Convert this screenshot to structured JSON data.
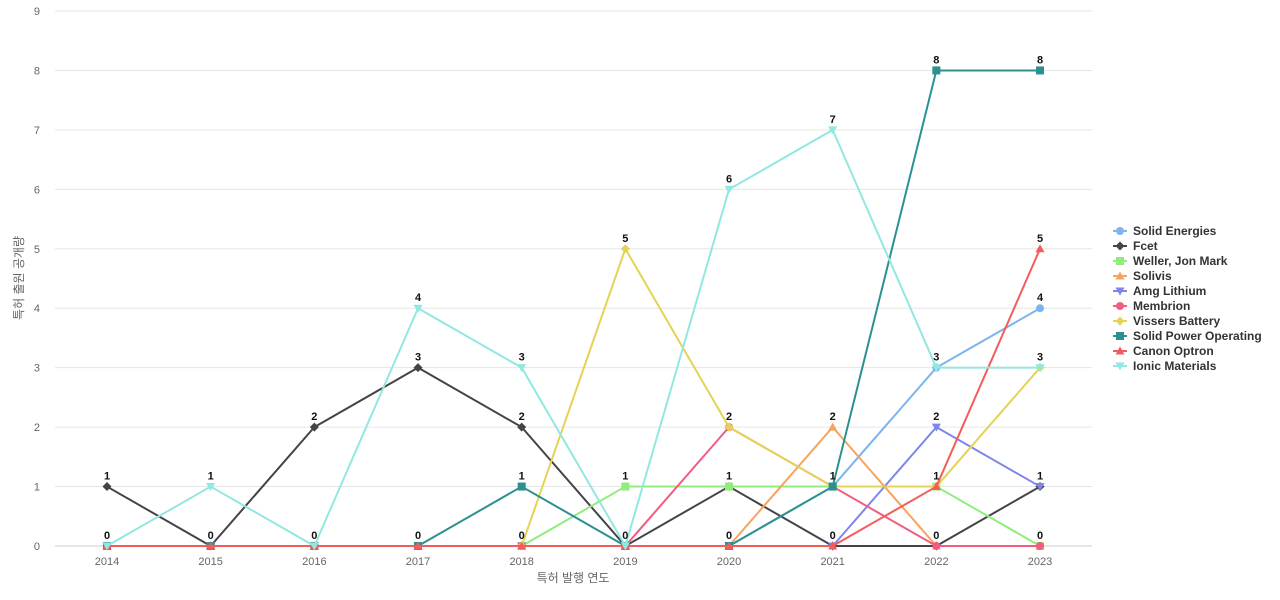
{
  "chart_data": {
    "type": "line",
    "title": "",
    "xlabel": "특허 발행 연도",
    "ylabel": "특허 출원 공개량",
    "ylim": [
      0,
      9
    ],
    "yticks": [
      0,
      1,
      2,
      3,
      4,
      5,
      6,
      7,
      8,
      9
    ],
    "grid": true,
    "legend_position": "right",
    "categories": [
      "2014",
      "2015",
      "2016",
      "2017",
      "2018",
      "2019",
      "2020",
      "2021",
      "2022",
      "2023"
    ],
    "series": [
      {
        "name": "Solid Energies",
        "color": "#7cb5ec",
        "marker": "circle",
        "values": [
          0,
          0,
          0,
          0,
          0,
          0,
          0,
          1,
          3,
          4
        ]
      },
      {
        "name": "Fcet",
        "color": "#434348",
        "marker": "diamond",
        "values": [
          1,
          0,
          2,
          3,
          2,
          0,
          1,
          0,
          0,
          1
        ]
      },
      {
        "name": "Weller, Jon Mark",
        "color": "#90ed7d",
        "marker": "square",
        "values": [
          0,
          0,
          0,
          0,
          0,
          1,
          1,
          1,
          1,
          0
        ]
      },
      {
        "name": "Solivis",
        "color": "#f7a35c",
        "marker": "triangle",
        "values": [
          0,
          0,
          0,
          0,
          0,
          0,
          0,
          2,
          0,
          0
        ]
      },
      {
        "name": "Amg Lithium",
        "color": "#8085e9",
        "marker": "triangle-down",
        "values": [
          0,
          0,
          0,
          0,
          0,
          0,
          0,
          0,
          2,
          1
        ]
      },
      {
        "name": "Membrion",
        "color": "#f15c80",
        "marker": "circle",
        "values": [
          0,
          0,
          0,
          0,
          0,
          0,
          2,
          1,
          0,
          0
        ]
      },
      {
        "name": "Vissers Battery",
        "color": "#e4d354",
        "marker": "diamond",
        "values": [
          0,
          0,
          0,
          0,
          0,
          5,
          2,
          1,
          1,
          3
        ]
      },
      {
        "name": "Solid Power Operating",
        "color": "#2b908f",
        "marker": "square",
        "values": [
          0,
          0,
          0,
          0,
          1,
          0,
          0,
          1,
          8,
          8
        ]
      },
      {
        "name": "Canon Optron",
        "color": "#f45b5b",
        "marker": "triangle",
        "values": [
          0,
          0,
          0,
          0,
          0,
          0,
          0,
          0,
          1,
          5
        ]
      },
      {
        "name": "Ionic Materials",
        "color": "#91e8e1",
        "marker": "triangle-down",
        "values": [
          0,
          1,
          0,
          4,
          3,
          0,
          6,
          7,
          3,
          3
        ]
      }
    ],
    "data_labels": [
      {
        "x": "2014",
        "top": "1",
        "bottom": "0"
      },
      {
        "x": "2015",
        "top": "1",
        "bottom": "0"
      },
      {
        "x": "2016",
        "top": "2",
        "bottom": "0"
      },
      {
        "x": "2017",
        "top": "4",
        "second": "3",
        "bottom": "0"
      },
      {
        "x": "2018",
        "top": "3",
        "second": "2",
        "third": "1",
        "bottom": "0"
      },
      {
        "x": "2019",
        "top": "5",
        "second": "1",
        "bottom": "0"
      },
      {
        "x": "2020",
        "top": "6",
        "second": "2",
        "third": "1",
        "bottom": "0"
      },
      {
        "x": "2021",
        "top": "7",
        "second": "2",
        "third": "1",
        "bottom": "0"
      },
      {
        "x": "2022",
        "top": "8",
        "second": "3",
        "third": "2",
        "fourth": "1",
        "bottom": "0"
      },
      {
        "x": "2023",
        "top": "8",
        "second": "5",
        "third": "4",
        "fourth": "3",
        "fifth": "1",
        "bottom": "0"
      }
    ]
  }
}
